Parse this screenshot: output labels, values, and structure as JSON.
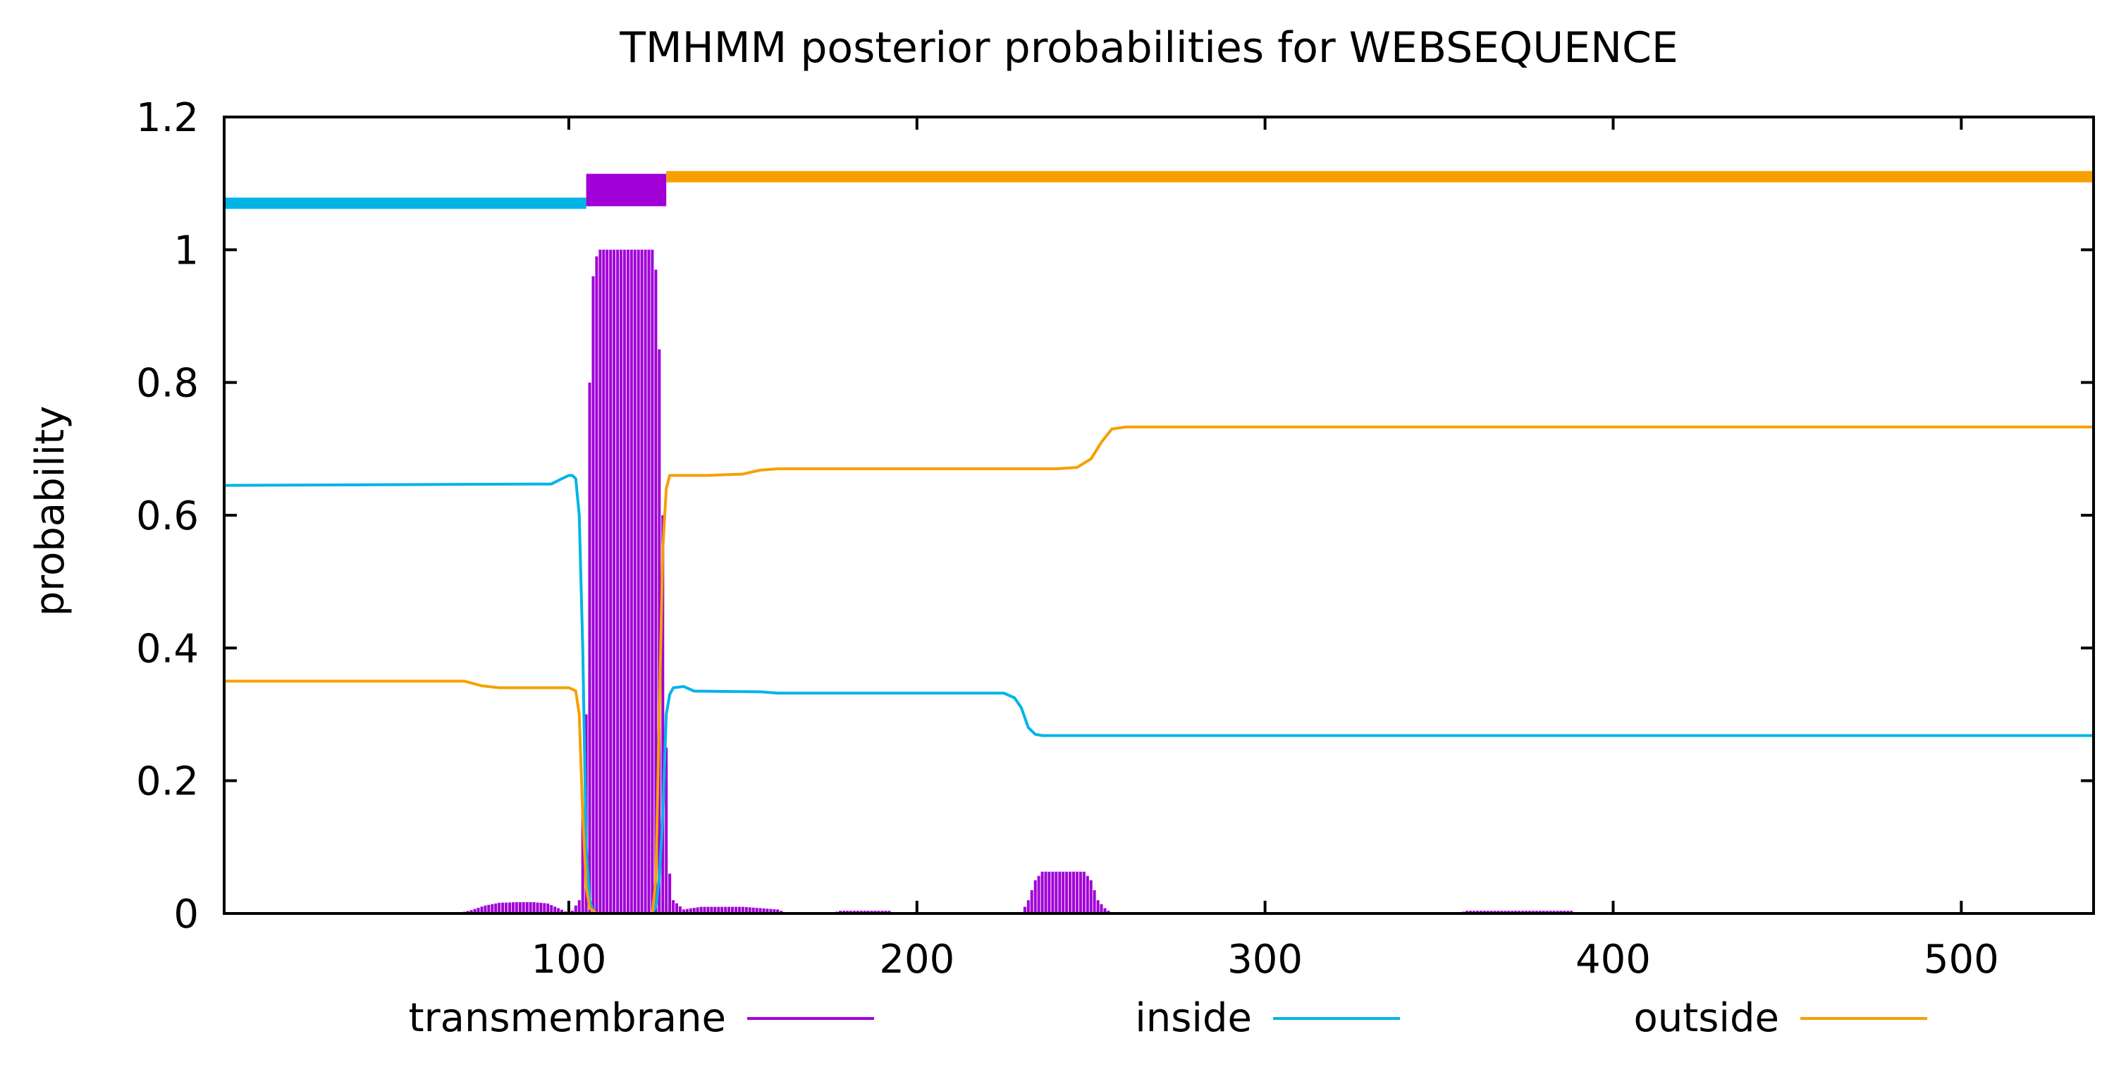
{
  "chart_data": {
    "type": "line",
    "title": "TMHMM posterior probabilities for WEBSEQUENCE",
    "xlabel": "",
    "ylabel": "probability",
    "xlim": [
      1,
      538
    ],
    "ylim": [
      0,
      1.2
    ],
    "xticks": [
      100,
      200,
      300,
      400,
      500
    ],
    "yticks": [
      0,
      0.2,
      0.4,
      0.6,
      0.8,
      1,
      1.2
    ],
    "xtick_labels": [
      "100",
      "200",
      "300",
      "400",
      "500"
    ],
    "ytick_labels": [
      "0",
      "0.2",
      "0.4",
      "0.6",
      "0.8",
      "1",
      "1.2"
    ],
    "grid": false,
    "legend_position": "bottom",
    "colors": {
      "transmembrane": "#a000d6",
      "inside": "#00b4e6",
      "outside": "#f5a000"
    },
    "series": [
      {
        "name": "transmembrane",
        "style": "impulses",
        "points": [
          [
            1,
            0
          ],
          [
            68,
            0
          ],
          [
            72,
            0.005
          ],
          [
            76,
            0.012
          ],
          [
            80,
            0.016
          ],
          [
            85,
            0.017
          ],
          [
            90,
            0.017
          ],
          [
            94,
            0.015
          ],
          [
            97,
            0.008
          ],
          [
            99,
            0.003
          ],
          [
            101,
            0.004
          ],
          [
            103,
            0.02
          ],
          [
            105,
            0.3
          ],
          [
            106,
            0.8
          ],
          [
            107,
            0.96
          ],
          [
            108,
            0.99
          ],
          [
            109,
            1
          ],
          [
            124,
            1
          ],
          [
            125,
            0.97
          ],
          [
            126,
            0.85
          ],
          [
            127,
            0.6
          ],
          [
            128,
            0.25
          ],
          [
            129,
            0.06
          ],
          [
            130,
            0.02
          ],
          [
            133,
            0.006
          ],
          [
            138,
            0.01
          ],
          [
            150,
            0.01
          ],
          [
            160,
            0.006
          ],
          [
            163,
            0
          ],
          [
            175,
            0
          ],
          [
            178,
            0.004
          ],
          [
            192,
            0.004
          ],
          [
            194,
            0
          ],
          [
            230,
            0
          ],
          [
            232,
            0.02
          ],
          [
            234,
            0.05
          ],
          [
            236,
            0.063
          ],
          [
            248,
            0.063
          ],
          [
            250,
            0.05
          ],
          [
            252,
            0.02
          ],
          [
            254,
            0.008
          ],
          [
            256,
            0
          ],
          [
            355,
            0
          ],
          [
            358,
            0.004
          ],
          [
            388,
            0.004
          ],
          [
            390,
            0
          ],
          [
            538,
            0
          ]
        ]
      },
      {
        "name": "inside",
        "style": "line",
        "points": [
          [
            1,
            0.645
          ],
          [
            95,
            0.647
          ],
          [
            98,
            0.655
          ],
          [
            100,
            0.66
          ],
          [
            101,
            0.66
          ],
          [
            102,
            0.655
          ],
          [
            103,
            0.6
          ],
          [
            104,
            0.4
          ],
          [
            105,
            0.1
          ],
          [
            106,
            0.02
          ],
          [
            107,
            0.003
          ],
          [
            108,
            0
          ],
          [
            124,
            0
          ],
          [
            125,
            0.01
          ],
          [
            126,
            0.05
          ],
          [
            127,
            0.15
          ],
          [
            128,
            0.3
          ],
          [
            129,
            0.33
          ],
          [
            130,
            0.34
          ],
          [
            133,
            0.342
          ],
          [
            136,
            0.335
          ],
          [
            155,
            0.334
          ],
          [
            160,
            0.332
          ],
          [
            225,
            0.332
          ],
          [
            228,
            0.325
          ],
          [
            230,
            0.31
          ],
          [
            232,
            0.28
          ],
          [
            234,
            0.27
          ],
          [
            236,
            0.268
          ],
          [
            538,
            0.268
          ]
        ]
      },
      {
        "name": "outside",
        "style": "line",
        "points": [
          [
            1,
            0.35
          ],
          [
            70,
            0.35
          ],
          [
            75,
            0.343
          ],
          [
            80,
            0.34
          ],
          [
            100,
            0.34
          ],
          [
            101,
            0.338
          ],
          [
            102,
            0.335
          ],
          [
            103,
            0.3
          ],
          [
            104,
            0.15
          ],
          [
            105,
            0.04
          ],
          [
            106,
            0.008
          ],
          [
            108,
            0
          ],
          [
            124,
            0
          ],
          [
            125,
            0.05
          ],
          [
            126,
            0.3
          ],
          [
            127,
            0.55
          ],
          [
            128,
            0.64
          ],
          [
            129,
            0.66
          ],
          [
            140,
            0.66
          ],
          [
            150,
            0.662
          ],
          [
            155,
            0.668
          ],
          [
            160,
            0.67
          ],
          [
            240,
            0.67
          ],
          [
            246,
            0.672
          ],
          [
            250,
            0.685
          ],
          [
            253,
            0.71
          ],
          [
            256,
            0.73
          ],
          [
            260,
            0.733
          ],
          [
            538,
            0.733
          ]
        ]
      }
    ],
    "topology_bar": [
      {
        "label": "inside",
        "start": 1,
        "end": 105,
        "y": 1.07
      },
      {
        "label": "transmembrane",
        "start": 105,
        "end": 128,
        "y": 1.09
      },
      {
        "label": "outside",
        "start": 128,
        "end": 538,
        "y": 1.11
      }
    ],
    "legend": [
      {
        "label": "transmembrane",
        "series": "transmembrane"
      },
      {
        "label": "inside",
        "series": "inside"
      },
      {
        "label": "outside",
        "series": "outside"
      }
    ]
  }
}
